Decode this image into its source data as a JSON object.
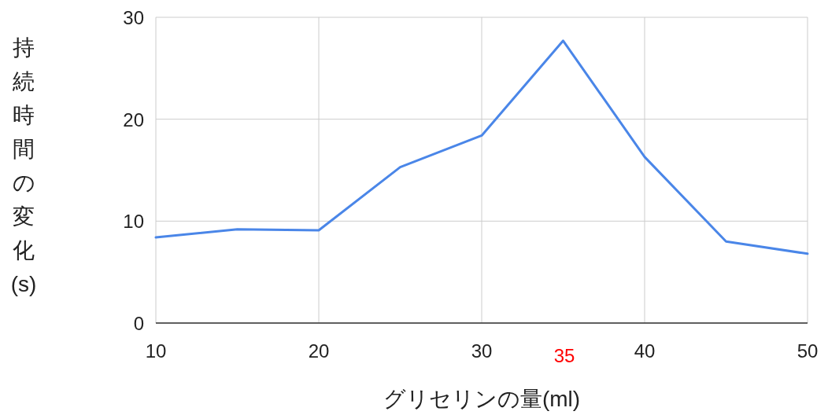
{
  "chart_data": {
    "type": "line",
    "xlabel": "グリセリンの量(ml)",
    "ylabel": "持続時間の変化(s)",
    "x": [
      10,
      15,
      20,
      25,
      30,
      35,
      40,
      45,
      50
    ],
    "series": [
      {
        "color": "#4a86e8",
        "values": [
          8.4,
          9.2,
          9.1,
          15.3,
          18.4,
          27.7,
          16.3,
          8.0,
          6.8
        ]
      }
    ],
    "xlim": [
      10,
      50
    ],
    "xticks": [
      10,
      20,
      30,
      40,
      50
    ],
    "ylim": [
      0,
      30
    ],
    "yticks": [
      0,
      10,
      20,
      30
    ],
    "grid": true,
    "marker": "none",
    "line_style": "solid",
    "annotations": [
      "35"
    ]
  }
}
